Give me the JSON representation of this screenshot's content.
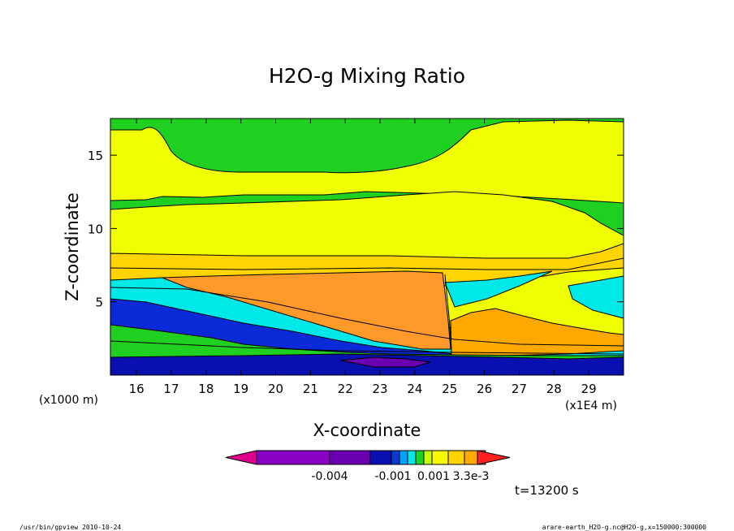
{
  "chart_data": {
    "type": "heatmap",
    "title": "H2O-g Mixing Ratio",
    "xlabel": "X-coordinate",
    "ylabel": "Z-coordinate",
    "x_unit": "(x1E4 m)",
    "y_unit": "(x1000 m)",
    "xlim": [
      15.25,
      30.0
    ],
    "ylim": [
      0.0,
      17.5
    ],
    "x_ticks": [
      "16",
      "17",
      "18",
      "19",
      "20",
      "21",
      "22",
      "23",
      "24",
      "25",
      "26",
      "27",
      "28",
      "29"
    ],
    "y_ticks": [
      "5",
      "10",
      "15"
    ],
    "x_tick_values": [
      16,
      17,
      18,
      19,
      20,
      21,
      22,
      23,
      24,
      25,
      26,
      27,
      28,
      29
    ],
    "y_tick_values": [
      5,
      10,
      15
    ],
    "colorbar": {
      "labels": [
        "-0.004",
        "-0.001",
        "0.001",
        "3.3e-3"
      ],
      "colors": [
        "#e0008c",
        "#8a00c4",
        "#6a00b0",
        "#0a10b0",
        "#0a3ad0",
        "#00a0ff",
        "#00e8e8",
        "#20d020",
        "#c8ff00",
        "#f8f800",
        "#ffd400",
        "#ffa800",
        "#ff7a00",
        "#ff2020"
      ]
    },
    "time_label": "t=13200 s",
    "bands": [
      {
        "name": "upper-green",
        "color": "#20d020",
        "z_range": [
          15.5,
          17.5
        ]
      },
      {
        "name": "upper-yellow",
        "color": "#f0ff00",
        "z_range": [
          8.5,
          15.5
        ]
      },
      {
        "name": "mid-yellow-orange",
        "color": "#ffd000",
        "z_range": [
          6.5,
          8.5
        ]
      },
      {
        "name": "orange-core",
        "color": "#ff9a2a",
        "z_range": [
          2.0,
          6.8
        ]
      },
      {
        "name": "cyan-layer",
        "color": "#00e8e8",
        "z_range": [
          4.5,
          6.5
        ]
      },
      {
        "name": "blue-layer",
        "color": "#0a2ad8",
        "z_range": [
          1.5,
          5.5
        ]
      },
      {
        "name": "low-green",
        "color": "#20d020",
        "z_range": [
          1.0,
          2.5
        ]
      },
      {
        "name": "bottom-blue",
        "color": "#0a10b0",
        "z_range": [
          0.0,
          1.2
        ]
      }
    ]
  },
  "footer": {
    "left": "/usr/bin/gpview  2010-10-24",
    "right": "arare-earth_H2O-g.nc@H2O-g,x=150000:300000"
  }
}
